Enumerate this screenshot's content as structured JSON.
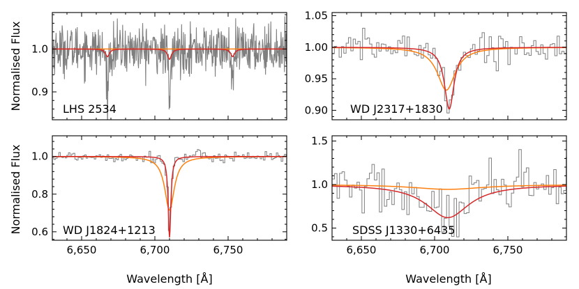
{
  "figure": {
    "xlabel": "Wavelength [Å]",
    "ylabel": "Normalised Flux"
  },
  "colors": {
    "data": "#7f7f7f",
    "model_red": "#d62728",
    "model_orange": "#ff7f0e"
  },
  "chart_data": [
    {
      "type": "line",
      "label": "LHS 2534",
      "xlim": [
        6630,
        6790
      ],
      "ylim": [
        0.835,
        1.085
      ],
      "xticks": [
        6650,
        6700,
        6750
      ],
      "xtick_labels": [
        "6,650",
        "6,700",
        "6,750"
      ],
      "yticks": [
        0.9,
        1.0
      ],
      "ytick_labels": [
        "0.9",
        "1.0"
      ],
      "data_style": "line",
      "noise": 0.028,
      "lines": [
        {
          "center": 6667.6,
          "obs_depth": 0.1,
          "obs_width": 0.8
        },
        {
          "center": 6710.0,
          "obs_depth": 0.14,
          "obs_width": 0.7
        },
        {
          "center": 6753.1,
          "obs_depth": 0.09,
          "obs_width": 0.8
        }
      ],
      "model_red": {
        "lines": [
          {
            "center": 6667.6,
            "depth": 0.018,
            "width": 1.6
          },
          {
            "center": 6710.0,
            "depth": 0.024,
            "width": 1.6
          },
          {
            "center": 6753.1,
            "depth": 0.018,
            "width": 1.6
          }
        ]
      },
      "model_orange": {
        "lines": []
      }
    },
    {
      "type": "line",
      "label": "WD J2317+1830",
      "xlim": [
        6630,
        6790
      ],
      "ylim": [
        0.885,
        1.055
      ],
      "xticks": [
        6650,
        6700,
        6750
      ],
      "xtick_labels": [
        "6,650",
        "6,700",
        "6,750"
      ],
      "yticks": [
        0.9,
        0.95,
        1.0,
        1.05
      ],
      "ytick_labels": [
        "0.90",
        "0.95",
        "1.00",
        "1.05"
      ],
      "data_style": "step",
      "noise": 0.012,
      "lines": [
        {
          "center": 6710.0,
          "obs_depth": 0.09,
          "obs_width": 4.0
        }
      ],
      "model_red": {
        "lines": [
          {
            "center": 6710.0,
            "depth": 0.098,
            "width": 4.0
          }
        ]
      },
      "model_orange": {
        "lines": [
          {
            "center": 6708.0,
            "depth": 0.068,
            "width": 7.5
          }
        ]
      }
    },
    {
      "type": "line",
      "label": "WD J1824+1213",
      "xlim": [
        6630,
        6790
      ],
      "ylim": [
        0.555,
        1.11
      ],
      "xticks": [
        6650,
        6700,
        6750
      ],
      "xtick_labels": [
        "6,650",
        "6,700",
        "6,750"
      ],
      "yticks": [
        0.6,
        0.8,
        1.0
      ],
      "ytick_labels": [
        "0.6",
        "0.8",
        "1.0"
      ],
      "data_style": "step",
      "noise": 0.015,
      "lines": [
        {
          "center": 6710.0,
          "obs_depth": 0.43,
          "obs_width": 1.1
        }
      ],
      "model_red": {
        "lines": [
          {
            "center": 6710.0,
            "depth": 0.43,
            "width": 1.1
          }
        ]
      },
      "model_orange": {
        "lines": [
          {
            "center": 6710.0,
            "depth": 0.285,
            "width": 4.0
          }
        ]
      }
    },
    {
      "type": "line",
      "label": "SDSS J1330+6435",
      "xlim": [
        6630,
        6790
      ],
      "ylim": [
        0.36,
        1.56
      ],
      "xticks": [
        6650,
        6700,
        6750
      ],
      "xtick_labels": [
        "6,650",
        "6,700",
        "6,750"
      ],
      "yticks": [
        0.5,
        1.0,
        1.5
      ],
      "ytick_labels": [
        "0.5",
        "1.0",
        "1.5"
      ],
      "data_style": "step",
      "noise": 0.16,
      "lines": [
        {
          "center": 6709.0,
          "obs_depth": 0.38,
          "obs_width": 18
        }
      ],
      "model_red": {
        "lines": [
          {
            "center": 6709.0,
            "depth": 0.38,
            "width": 18
          }
        ]
      },
      "model_orange": {
        "lines": [
          {
            "center": 6709.0,
            "depth": 0.055,
            "width": 30
          }
        ]
      }
    }
  ]
}
